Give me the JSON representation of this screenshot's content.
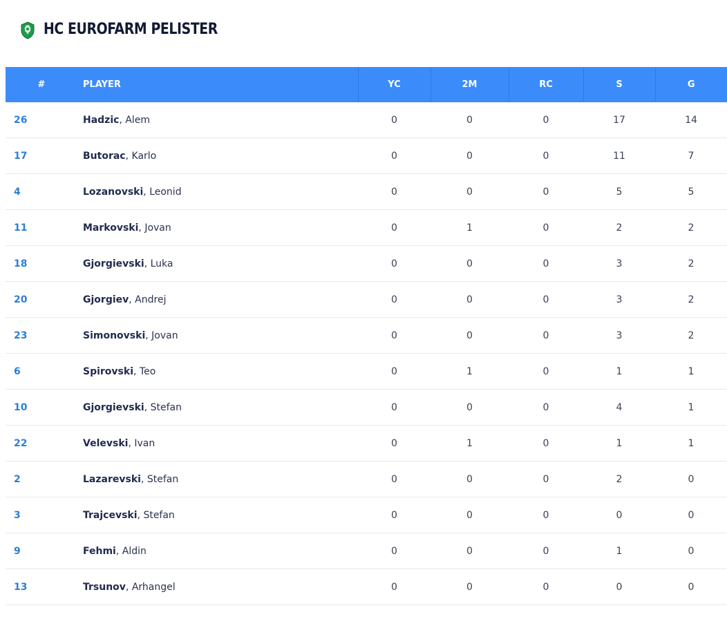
{
  "team": {
    "name": "HC EUROFARM PELISTER",
    "logo_icon": "lion-crest-icon",
    "logo_color": "#1e9a4a"
  },
  "table": {
    "header_color": "#3b8cfa",
    "link_color": "#2d7fd6",
    "columns": {
      "num": "#",
      "player": "PLAYER",
      "yc": "YC",
      "twom": "2M",
      "rc": "RC",
      "s": "S",
      "g": "G"
    },
    "rows": [
      {
        "num": "26",
        "last": "Hadzic",
        "first": "Alem",
        "yc": "0",
        "twom": "0",
        "rc": "0",
        "s": "17",
        "g": "14"
      },
      {
        "num": "17",
        "last": "Butorac",
        "first": "Karlo",
        "yc": "0",
        "twom": "0",
        "rc": "0",
        "s": "11",
        "g": "7"
      },
      {
        "num": "4",
        "last": "Lozanovski",
        "first": "Leonid",
        "yc": "0",
        "twom": "0",
        "rc": "0",
        "s": "5",
        "g": "5"
      },
      {
        "num": "11",
        "last": "Markovski",
        "first": "Jovan",
        "yc": "0",
        "twom": "1",
        "rc": "0",
        "s": "2",
        "g": "2"
      },
      {
        "num": "18",
        "last": "Gjorgievski",
        "first": "Luka",
        "yc": "0",
        "twom": "0",
        "rc": "0",
        "s": "3",
        "g": "2"
      },
      {
        "num": "20",
        "last": "Gjorgiev",
        "first": "Andrej",
        "yc": "0",
        "twom": "0",
        "rc": "0",
        "s": "3",
        "g": "2"
      },
      {
        "num": "23",
        "last": "Simonovski",
        "first": "Jovan",
        "yc": "0",
        "twom": "0",
        "rc": "0",
        "s": "3",
        "g": "2"
      },
      {
        "num": "6",
        "last": "Spirovski",
        "first": "Teo",
        "yc": "0",
        "twom": "1",
        "rc": "0",
        "s": "1",
        "g": "1"
      },
      {
        "num": "10",
        "last": "Gjorgievski",
        "first": "Stefan",
        "yc": "0",
        "twom": "0",
        "rc": "0",
        "s": "4",
        "g": "1"
      },
      {
        "num": "22",
        "last": "Velevski",
        "first": "Ivan",
        "yc": "0",
        "twom": "1",
        "rc": "0",
        "s": "1",
        "g": "1"
      },
      {
        "num": "2",
        "last": "Lazarevski",
        "first": "Stefan",
        "yc": "0",
        "twom": "0",
        "rc": "0",
        "s": "2",
        "g": "0"
      },
      {
        "num": "3",
        "last": "Trajcevski",
        "first": "Stefan",
        "yc": "0",
        "twom": "0",
        "rc": "0",
        "s": "0",
        "g": "0"
      },
      {
        "num": "9",
        "last": "Fehmi",
        "first": "Aldin",
        "yc": "0",
        "twom": "0",
        "rc": "0",
        "s": "1",
        "g": "0"
      },
      {
        "num": "13",
        "last": "Trsunov",
        "first": "Arhangel",
        "yc": "0",
        "twom": "0",
        "rc": "0",
        "s": "0",
        "g": "0"
      }
    ]
  }
}
